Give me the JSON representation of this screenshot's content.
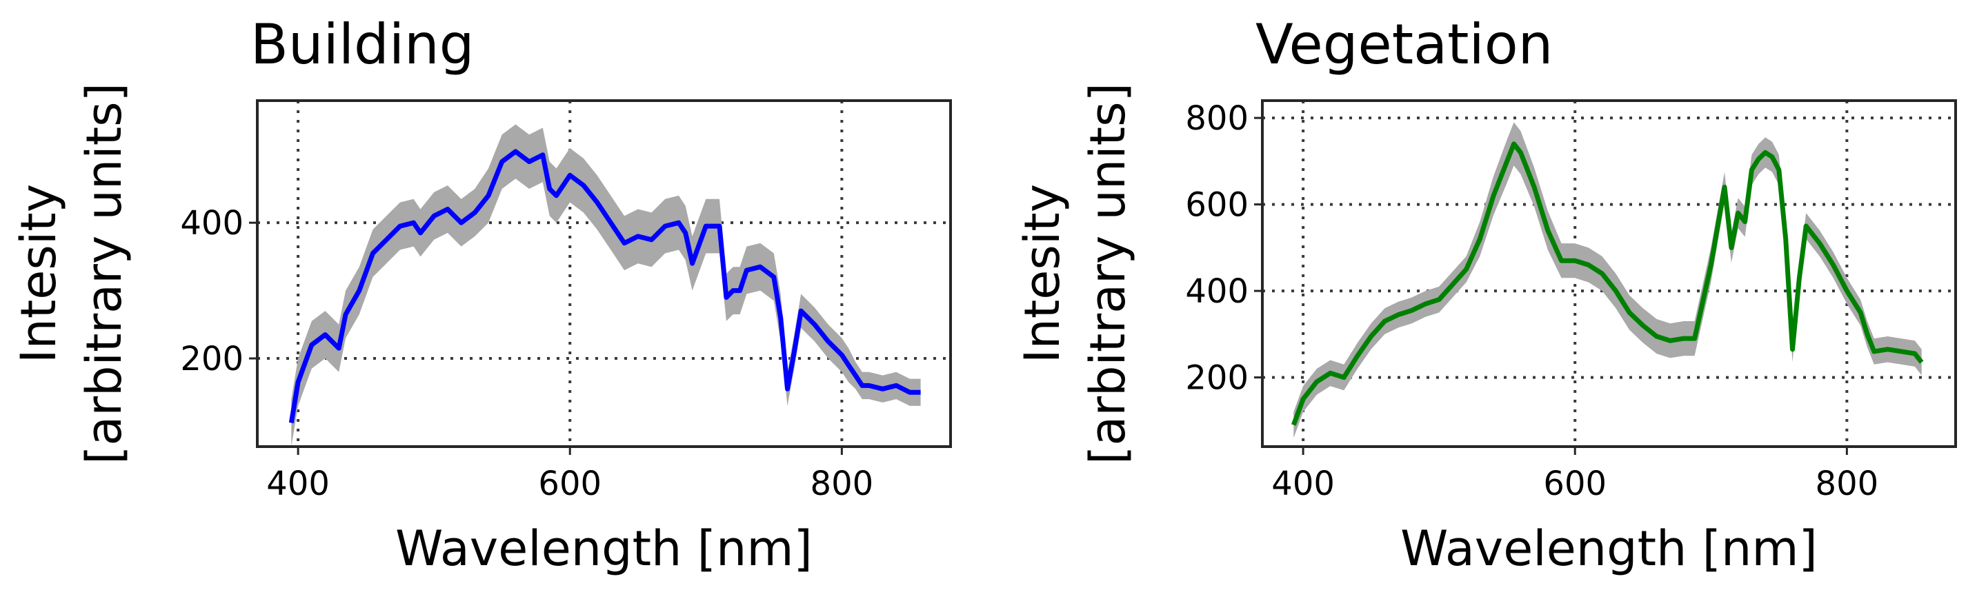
{
  "chart_data": [
    {
      "type": "line",
      "title": "Building",
      "xlabel": "Wavelength [nm]",
      "ylabel": [
        "Intesity",
        "[arbitrary units]"
      ],
      "xlim": [
        370,
        880
      ],
      "ylim": [
        70,
        580
      ],
      "xticks": [
        400,
        600,
        800
      ],
      "yticks": [
        200,
        400
      ],
      "grid": true,
      "band_color": "#a9a9a9",
      "series": [
        {
          "color": "#0000ff",
          "x": [
            395,
            400,
            410,
            420,
            430,
            435,
            445,
            455,
            465,
            475,
            485,
            490,
            500,
            510,
            520,
            530,
            540,
            550,
            560,
            570,
            580,
            585,
            590,
            600,
            610,
            620,
            630,
            640,
            650,
            660,
            670,
            680,
            685,
            690,
            700,
            710,
            715,
            720,
            725,
            730,
            740,
            750,
            755,
            760,
            765,
            770,
            780,
            790,
            800,
            805,
            810,
            815,
            820,
            830,
            840,
            850,
            858
          ],
          "y": [
            105,
            165,
            220,
            235,
            215,
            265,
            300,
            355,
            375,
            395,
            400,
            385,
            410,
            420,
            400,
            415,
            440,
            490,
            505,
            490,
            500,
            450,
            440,
            470,
            455,
            430,
            400,
            370,
            380,
            375,
            395,
            400,
            385,
            340,
            395,
            395,
            290,
            300,
            300,
            330,
            335,
            320,
            260,
            155,
            210,
            270,
            250,
            225,
            205,
            190,
            175,
            160,
            160,
            155,
            160,
            150,
            150
          ],
          "band": [
            35,
            35,
            35,
            35,
            35,
            35,
            35,
            35,
            35,
            35,
            35,
            35,
            35,
            35,
            35,
            35,
            40,
            40,
            40,
            40,
            40,
            40,
            40,
            40,
            40,
            40,
            40,
            40,
            40,
            40,
            40,
            40,
            40,
            40,
            40,
            40,
            35,
            35,
            35,
            35,
            35,
            35,
            35,
            25,
            25,
            25,
            25,
            25,
            25,
            25,
            20,
            20,
            20,
            20,
            20,
            20,
            20
          ]
        }
      ]
    },
    {
      "type": "line",
      "title": "Vegetation",
      "xlabel": "Wavelength [nm]",
      "ylabel": [
        "Intesity",
        "[arbitrary units]"
      ],
      "xlim": [
        370,
        880
      ],
      "ylim": [
        40,
        840
      ],
      "xticks": [
        400,
        600,
        800
      ],
      "yticks": [
        200,
        400,
        600,
        800
      ],
      "grid": true,
      "band_color": "#a9a9a9",
      "series": [
        {
          "color": "#008000",
          "x": [
            393,
            400,
            410,
            420,
            430,
            440,
            450,
            460,
            470,
            480,
            490,
            500,
            510,
            520,
            530,
            540,
            550,
            555,
            560,
            570,
            580,
            590,
            600,
            610,
            620,
            630,
            640,
            650,
            660,
            670,
            680,
            688,
            700,
            710,
            715,
            720,
            725,
            730,
            735,
            740,
            745,
            750,
            755,
            760,
            765,
            770,
            780,
            790,
            800,
            810,
            815,
            820,
            830,
            840,
            850,
            855
          ],
          "y": [
            90,
            150,
            190,
            210,
            200,
            250,
            295,
            330,
            345,
            355,
            370,
            380,
            415,
            450,
            520,
            620,
            700,
            740,
            720,
            640,
            540,
            470,
            470,
            460,
            440,
            400,
            350,
            320,
            295,
            285,
            290,
            290,
            460,
            640,
            500,
            580,
            560,
            680,
            705,
            720,
            710,
            680,
            520,
            265,
            430,
            550,
            510,
            460,
            400,
            350,
            300,
            260,
            265,
            260,
            255,
            235
          ],
          "band": [
            30,
            30,
            30,
            30,
            30,
            30,
            30,
            30,
            30,
            30,
            30,
            30,
            30,
            30,
            40,
            45,
            50,
            50,
            50,
            45,
            45,
            40,
            40,
            40,
            40,
            40,
            40,
            40,
            40,
            40,
            40,
            40,
            40,
            35,
            35,
            35,
            35,
            35,
            35,
            35,
            35,
            35,
            35,
            30,
            30,
            30,
            30,
            30,
            30,
            30,
            30,
            30,
            30,
            30,
            30,
            30
          ]
        }
      ]
    }
  ]
}
